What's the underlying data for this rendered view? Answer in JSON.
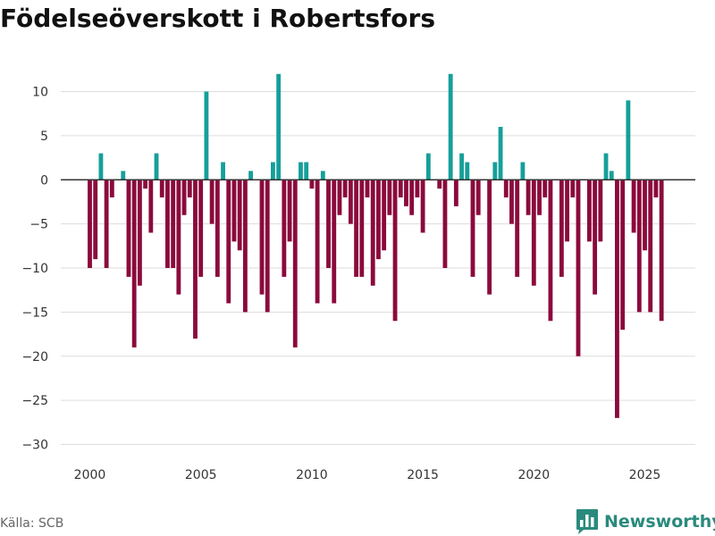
{
  "title": "Födelseöverskott i Robertsfors",
  "source": "Källa: SCB",
  "brand": {
    "name": "Newsworthy",
    "icon": "bar-chart-logo-icon",
    "color": "#2a8a7d"
  },
  "colors": {
    "positive": "#169f9a",
    "negative": "#8b0a3c",
    "grid": "#dddddd",
    "zero_line": "#333333",
    "axis_text": "#333333"
  },
  "chart_data": {
    "type": "bar",
    "title": "Födelseöverskott i Robertsfors",
    "xlabel": "",
    "ylabel": "",
    "frequency": "quarterly",
    "start_year": 2000,
    "ylim": [
      -30,
      13
    ],
    "xlim": [
      1999.0,
      2027.3
    ],
    "yticks": [
      10,
      5,
      0,
      -5,
      -10,
      -15,
      -20,
      -25,
      -30
    ],
    "ytick_labels": [
      "10",
      "5",
      "0",
      "−5",
      "−10",
      "−15",
      "−20",
      "−25",
      "−30"
    ],
    "xticks": [
      2000,
      2005,
      2010,
      2015,
      2020,
      2025
    ],
    "xtick_labels": [
      "2000",
      "2005",
      "2010",
      "2015",
      "2020",
      "2025"
    ],
    "grid": true,
    "values": [
      -10,
      -9,
      3,
      -10,
      -2,
      0,
      1,
      -11,
      -19,
      -12,
      -1,
      -6,
      3,
      -2,
      -10,
      -10,
      -13,
      -4,
      -2,
      -18,
      -11,
      10,
      -5,
      -11,
      2,
      -14,
      -7,
      -8,
      -15,
      1,
      0,
      -13,
      -15,
      2,
      12,
      -11,
      -7,
      -19,
      2,
      2,
      -1,
      -14,
      1,
      -10,
      -14,
      -4,
      -2,
      -5,
      -11,
      -11,
      -2,
      -12,
      -9,
      -8,
      -4,
      -16,
      -2,
      -3,
      -4,
      -2,
      -6,
      3,
      0,
      -1,
      -10,
      12,
      -3,
      3,
      2,
      -11,
      -4,
      0,
      -13,
      2,
      6,
      -2,
      -5,
      -11,
      2,
      -4,
      -12,
      -4,
      -2,
      -16,
      0,
      -11,
      -7,
      -2,
      -20,
      0,
      -7,
      -13,
      -7,
      3,
      1,
      -27,
      -17,
      9,
      -6,
      -15,
      -8,
      -15,
      -2,
      -16
    ]
  }
}
